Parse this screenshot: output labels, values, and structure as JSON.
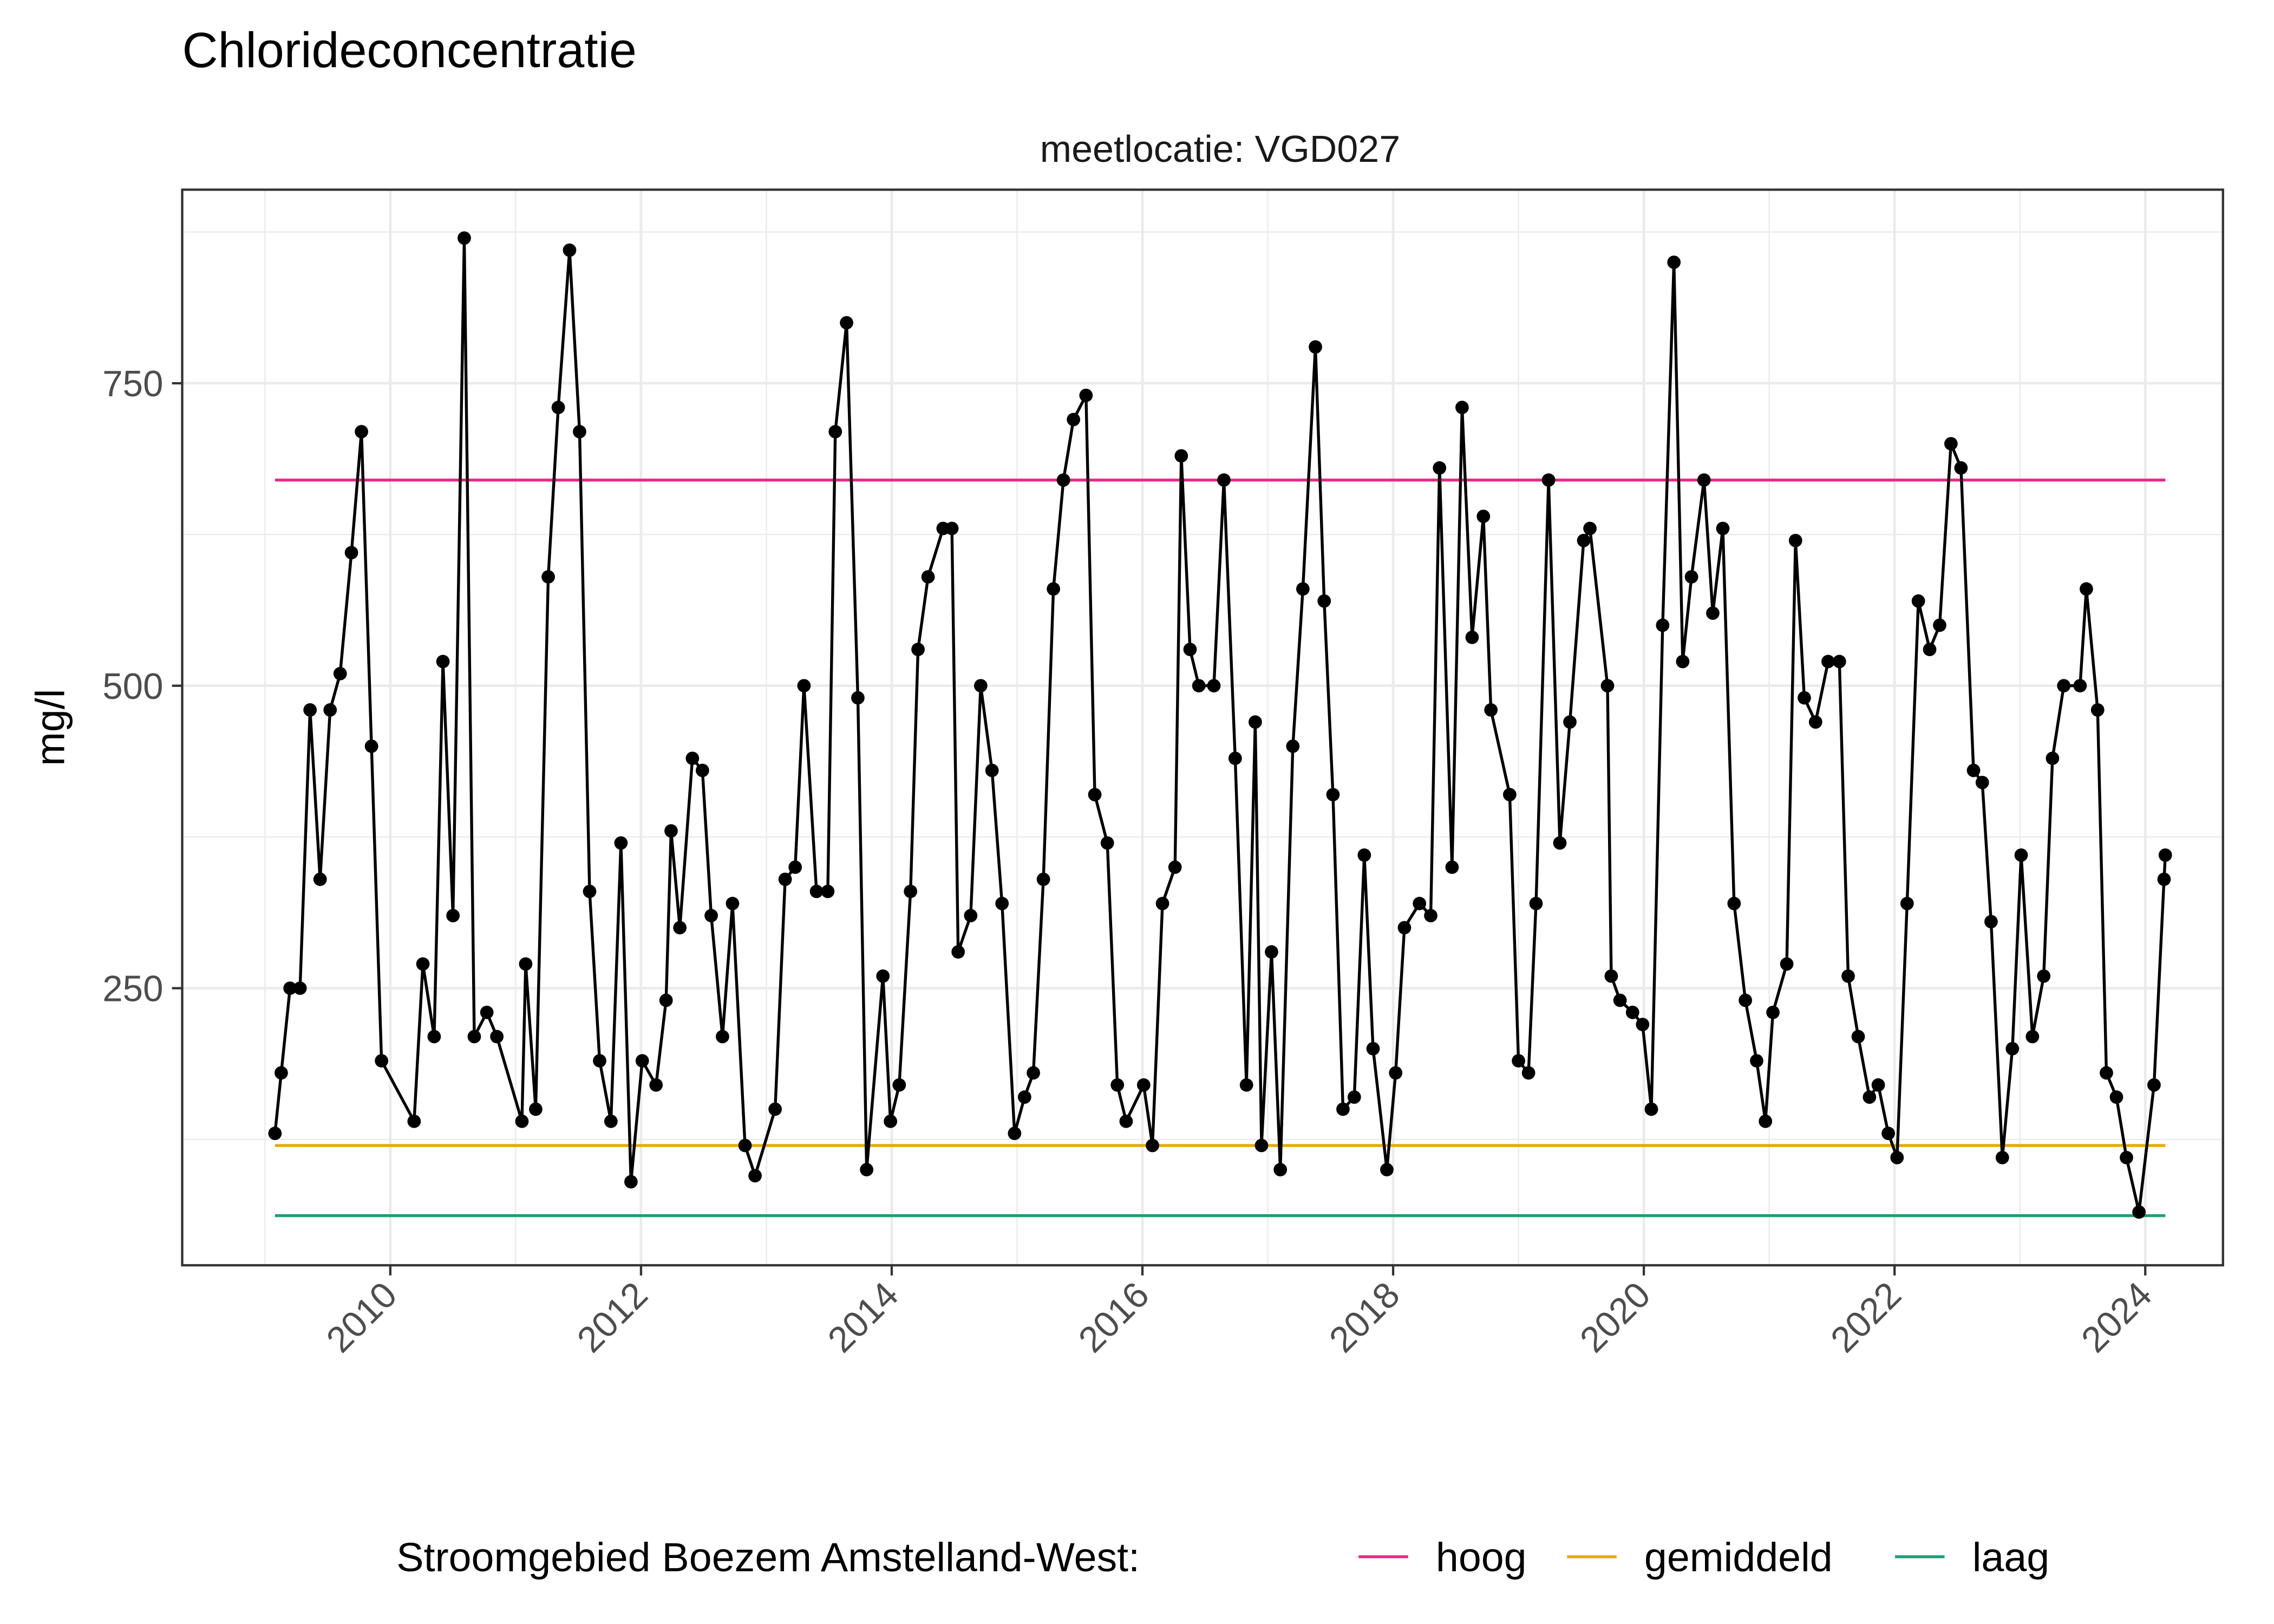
{
  "chart_data": {
    "type": "line",
    "title": "Chlorideconcentratie",
    "subtitle": "meetlocatie: VGD027",
    "xlabel": "",
    "ylabel": "mg/l",
    "xlim": [
      2008.34,
      2024.62
    ],
    "ylim": [
      21,
      910
    ],
    "x_ticks": [
      2010,
      2012,
      2014,
      2016,
      2018,
      2020,
      2022,
      2024
    ],
    "x_tick_labels": [
      "2010",
      "2012",
      "2014",
      "2016",
      "2018",
      "2020",
      "2022",
      "2024"
    ],
    "y_ticks": [
      250,
      500,
      750
    ],
    "y_tick_labels": [
      "250",
      "500",
      "750"
    ],
    "grid": true,
    "legend": {
      "placement": "bottom",
      "title": "Stroomgebied Boezem Amstelland-West:",
      "entries": [
        {
          "label": "hoog",
          "color": "#E7298A"
        },
        {
          "label": "gemiddeld",
          "color": "#E6AB02"
        },
        {
          "label": "laag",
          "color": "#1B9E77"
        }
      ]
    },
    "reference_lines": [
      {
        "name": "hoog",
        "value": 670,
        "color": "#E7298A"
      },
      {
        "name": "gemiddeld",
        "value": 120,
        "color": "#E6AB02"
      },
      {
        "name": "laag",
        "value": 62,
        "color": "#1B9E77"
      }
    ],
    "series_color": "#000000",
    "points": [
      [
        2009.08,
        130
      ],
      [
        2009.13,
        180
      ],
      [
        2009.2,
        250
      ],
      [
        2009.28,
        250
      ],
      [
        2009.36,
        480
      ],
      [
        2009.44,
        340
      ],
      [
        2009.52,
        480
      ],
      [
        2009.6,
        510
      ],
      [
        2009.69,
        610
      ],
      [
        2009.77,
        710
      ],
      [
        2009.85,
        450
      ],
      [
        2009.93,
        190
      ],
      [
        2010.19,
        140
      ],
      [
        2010.26,
        270
      ],
      [
        2010.35,
        210
      ],
      [
        2010.42,
        520
      ],
      [
        2010.5,
        310
      ],
      [
        2010.59,
        870
      ],
      [
        2010.67,
        210
      ],
      [
        2010.77,
        230
      ],
      [
        2010.85,
        210
      ],
      [
        2011.05,
        140
      ],
      [
        2011.08,
        270
      ],
      [
        2011.16,
        150
      ],
      [
        2011.26,
        590
      ],
      [
        2011.34,
        730
      ],
      [
        2011.43,
        860
      ],
      [
        2011.51,
        710
      ],
      [
        2011.59,
        330
      ],
      [
        2011.67,
        190
      ],
      [
        2011.76,
        140
      ],
      [
        2011.84,
        370
      ],
      [
        2011.92,
        90
      ],
      [
        2012.01,
        190
      ],
      [
        2012.12,
        170
      ],
      [
        2012.2,
        240
      ],
      [
        2012.24,
        380
      ],
      [
        2012.31,
        300
      ],
      [
        2012.41,
        440
      ],
      [
        2012.49,
        430
      ],
      [
        2012.56,
        310
      ],
      [
        2012.65,
        210
      ],
      [
        2012.73,
        320
      ],
      [
        2012.83,
        120
      ],
      [
        2012.91,
        95
      ],
      [
        2013.07,
        150
      ],
      [
        2013.15,
        340
      ],
      [
        2013.23,
        350
      ],
      [
        2013.3,
        500
      ],
      [
        2013.4,
        330
      ],
      [
        2013.49,
        330
      ],
      [
        2013.55,
        710
      ],
      [
        2013.64,
        800
      ],
      [
        2013.73,
        490
      ],
      [
        2013.8,
        100
      ],
      [
        2013.93,
        260
      ],
      [
        2013.99,
        140
      ],
      [
        2014.06,
        170
      ],
      [
        2014.15,
        330
      ],
      [
        2014.21,
        530
      ],
      [
        2014.29,
        590
      ],
      [
        2014.41,
        630
      ],
      [
        2014.48,
        630
      ],
      [
        2014.53,
        280
      ],
      [
        2014.63,
        310
      ],
      [
        2014.71,
        500
      ],
      [
        2014.8,
        430
      ],
      [
        2014.88,
        320
      ],
      [
        2014.98,
        130
      ],
      [
        2015.06,
        160
      ],
      [
        2015.13,
        180
      ],
      [
        2015.21,
        340
      ],
      [
        2015.29,
        580
      ],
      [
        2015.37,
        670
      ],
      [
        2015.45,
        720
      ],
      [
        2015.55,
        740
      ],
      [
        2015.62,
        410
      ],
      [
        2015.72,
        370
      ],
      [
        2015.8,
        170
      ],
      [
        2015.87,
        140
      ],
      [
        2016.01,
        170
      ],
      [
        2016.08,
        120
      ],
      [
        2016.16,
        320
      ],
      [
        2016.26,
        350
      ],
      [
        2016.31,
        690
      ],
      [
        2016.38,
        530
      ],
      [
        2016.45,
        500
      ],
      [
        2016.57,
        500
      ],
      [
        2016.65,
        670
      ],
      [
        2016.74,
        440
      ],
      [
        2016.83,
        170
      ],
      [
        2016.9,
        470
      ],
      [
        2016.95,
        120
      ],
      [
        2017.03,
        280
      ],
      [
        2017.1,
        100
      ],
      [
        2017.2,
        450
      ],
      [
        2017.28,
        580
      ],
      [
        2017.38,
        780
      ],
      [
        2017.45,
        570
      ],
      [
        2017.52,
        410
      ],
      [
        2017.6,
        150
      ],
      [
        2017.69,
        160
      ],
      [
        2017.77,
        360
      ],
      [
        2017.84,
        200
      ],
      [
        2017.95,
        100
      ],
      [
        2018.02,
        180
      ],
      [
        2018.09,
        300
      ],
      [
        2018.21,
        320
      ],
      [
        2018.3,
        310
      ],
      [
        2018.37,
        680
      ],
      [
        2018.47,
        350
      ],
      [
        2018.55,
        730
      ],
      [
        2018.63,
        540
      ],
      [
        2018.72,
        640
      ],
      [
        2018.78,
        480
      ],
      [
        2018.93,
        410
      ],
      [
        2019.0,
        190
      ],
      [
        2019.08,
        180
      ],
      [
        2019.14,
        320
      ],
      [
        2019.24,
        670
      ],
      [
        2019.33,
        370
      ],
      [
        2019.41,
        470
      ],
      [
        2019.52,
        620
      ],
      [
        2019.57,
        630
      ],
      [
        2019.71,
        500
      ],
      [
        2019.74,
        260
      ],
      [
        2019.81,
        240
      ],
      [
        2019.91,
        230
      ],
      [
        2019.99,
        220
      ],
      [
        2020.06,
        150
      ],
      [
        2020.15,
        550
      ],
      [
        2020.24,
        850
      ],
      [
        2020.31,
        520
      ],
      [
        2020.38,
        590
      ],
      [
        2020.48,
        670
      ],
      [
        2020.55,
        560
      ],
      [
        2020.63,
        630
      ],
      [
        2020.72,
        320
      ],
      [
        2020.81,
        240
      ],
      [
        2020.9,
        190
      ],
      [
        2020.97,
        140
      ],
      [
        2021.03,
        230
      ],
      [
        2021.14,
        270
      ],
      [
        2021.21,
        620
      ],
      [
        2021.28,
        490
      ],
      [
        2021.37,
        470
      ],
      [
        2021.47,
        520
      ],
      [
        2021.56,
        520
      ],
      [
        2021.63,
        260
      ],
      [
        2021.71,
        210
      ],
      [
        2021.8,
        160
      ],
      [
        2021.87,
        170
      ],
      [
        2021.95,
        130
      ],
      [
        2022.02,
        110
      ],
      [
        2022.1,
        320
      ],
      [
        2022.19,
        570
      ],
      [
        2022.28,
        530
      ],
      [
        2022.36,
        550
      ],
      [
        2022.45,
        700
      ],
      [
        2022.53,
        680
      ],
      [
        2022.63,
        430
      ],
      [
        2022.7,
        420
      ],
      [
        2022.77,
        305
      ],
      [
        2022.86,
        110
      ],
      [
        2022.94,
        200
      ],
      [
        2023.01,
        360
      ],
      [
        2023.1,
        210
      ],
      [
        2023.19,
        260
      ],
      [
        2023.26,
        440
      ],
      [
        2023.35,
        500
      ],
      [
        2023.48,
        500
      ],
      [
        2023.53,
        580
      ],
      [
        2023.62,
        480
      ],
      [
        2023.69,
        180
      ],
      [
        2023.77,
        160
      ],
      [
        2023.85,
        110
      ],
      [
        2023.95,
        65
      ],
      [
        2024.07,
        170
      ],
      [
        2024.15,
        340
      ],
      [
        2024.16,
        360
      ]
    ]
  }
}
